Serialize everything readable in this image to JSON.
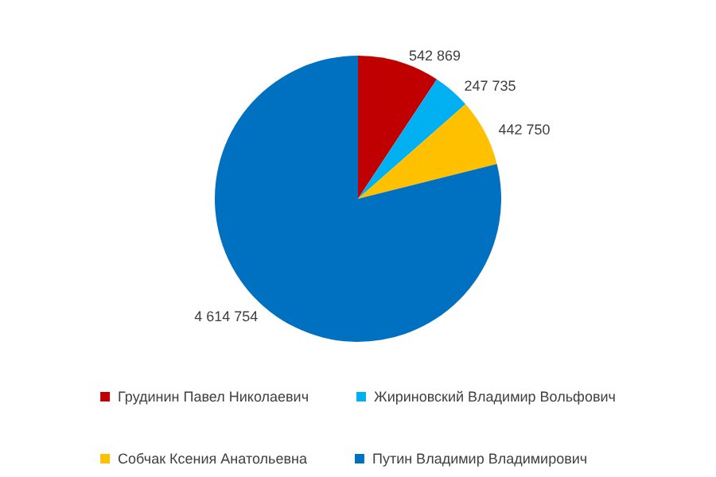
{
  "chart_data": {
    "type": "pie",
    "categories": [
      "Грудинин Павел Николаевич",
      "Жириновский Владимир Вольфович",
      "Собчак Ксения Анатольевна",
      "Путин Владимир Владимирович"
    ],
    "values": [
      542869,
      247735,
      442750,
      4614754
    ],
    "colors": [
      "#c00000",
      "#00b0f0",
      "#ffc000",
      "#0070c0"
    ],
    "data_labels": true,
    "legend": "bottom"
  }
}
